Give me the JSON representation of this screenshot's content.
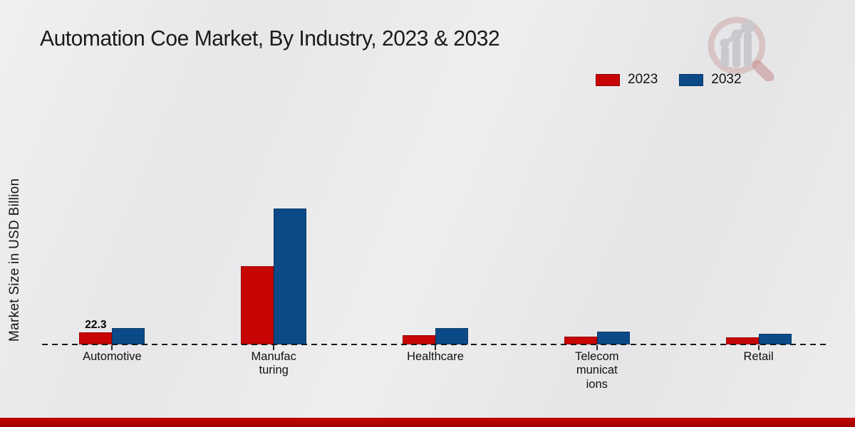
{
  "chart_data": {
    "type": "bar",
    "title": "Automation Coe Market, By Industry, 2023 & 2032",
    "ylabel": "Market Size in USD Billion",
    "xlabel": "",
    "categories": [
      "Automotive",
      "Manufacturing",
      "Healthcare",
      "Telecommunications",
      "Retail"
    ],
    "tick_labels": [
      "Automotive",
      "Manufac\nturing",
      "Healthcare",
      "Telecom\nmunicat\nions",
      "Retail"
    ],
    "series": [
      {
        "name": "2023",
        "color": "#c60504",
        "edge_color": "#9c0303",
        "values": [
          22.3,
          148,
          18,
          14.5,
          13
        ]
      },
      {
        "name": "2032",
        "color": "#0b4a87",
        "edge_color": "#083a68",
        "values": [
          30.5,
          257,
          31,
          24.5,
          20
        ]
      }
    ],
    "bar_labels": [
      {
        "series": "2023",
        "category_index": 0,
        "text": "22.3"
      }
    ],
    "ylim": [
      0,
      270
    ],
    "grid": false,
    "legend_position": "top-right",
    "axis_style": "dashed-baseline-only"
  },
  "branding": {
    "footer_band_color": "#b20400",
    "logo": "magnifier-bar-chart-watermark"
  }
}
